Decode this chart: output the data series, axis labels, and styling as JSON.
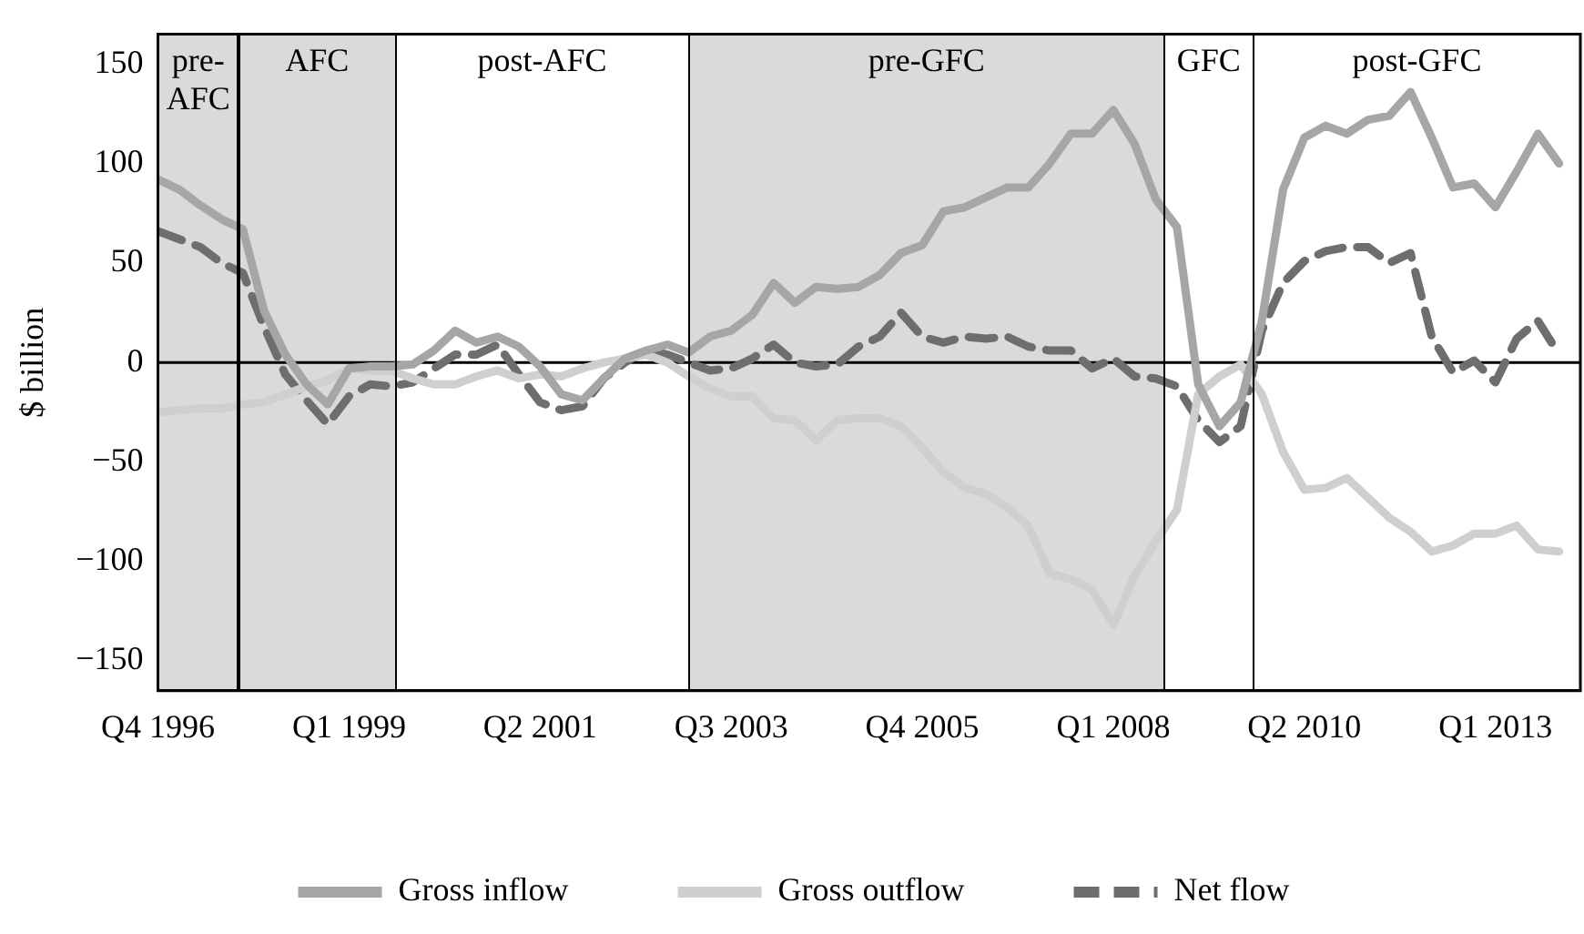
{
  "chart_data": {
    "type": "line",
    "ylabel": "$ billion",
    "categories": [
      "Q4 1996",
      null,
      null,
      null,
      null,
      null,
      null,
      null,
      null,
      "Q1 1999",
      null,
      null,
      null,
      null,
      null,
      null,
      null,
      null,
      "Q2 2001",
      null,
      null,
      null,
      null,
      null,
      null,
      null,
      null,
      "Q3 2003",
      null,
      null,
      null,
      null,
      null,
      null,
      null,
      null,
      "Q4 2005",
      null,
      null,
      null,
      null,
      null,
      null,
      null,
      null,
      "Q1 2008",
      null,
      null,
      null,
      null,
      null,
      null,
      null,
      null,
      "Q2 2010",
      null,
      null,
      null,
      null,
      null,
      null,
      null,
      null,
      "Q1 2013",
      null,
      null,
      null
    ],
    "series": [
      {
        "name": "Gross inflow",
        "color": "#a6a6a6",
        "line_style": "solid",
        "values": [
          92,
          87,
          79,
          72,
          67,
          26,
          4,
          -11,
          -21,
          -3,
          -2,
          -2,
          -1,
          6,
          16,
          10,
          13,
          8,
          -2,
          -16,
          -19,
          -8,
          2,
          6,
          9,
          5,
          13,
          16,
          24,
          40,
          30,
          38,
          37,
          38,
          44,
          55,
          59,
          76,
          78,
          83,
          88,
          88,
          100,
          115,
          115,
          127,
          110,
          82,
          68,
          -11,
          -32,
          -20,
          21,
          87,
          113,
          119,
          115,
          122,
          124,
          136,
          113,
          88,
          90,
          78,
          96,
          115,
          100
        ]
      },
      {
        "name": "Gross outflow",
        "color": "#cfcfcf",
        "line_style": "solid",
        "values": [
          -25,
          -24,
          -23,
          -23,
          -21,
          -20,
          -16,
          -12,
          -9,
          -3,
          -4,
          -4,
          -8,
          -11,
          -11,
          -7,
          -4,
          -8,
          -6,
          -7,
          -3,
          0,
          2,
          4,
          0,
          -7,
          -13,
          -17,
          -17,
          -28,
          -29,
          -39,
          -29,
          -28,
          -28,
          -32,
          -43,
          -55,
          -63,
          -66,
          -73,
          -82,
          -106,
          -109,
          -114,
          -132,
          -107,
          -90,
          -74,
          -16,
          -7,
          -1,
          -16,
          -45,
          -64,
          -63,
          -58,
          -68,
          -78,
          -85,
          -95,
          -92,
          -86,
          -86,
          -82,
          -94,
          -95
        ]
      },
      {
        "name": "Net flow",
        "color": "#6e6e6e",
        "line_style": "dashed",
        "values": [
          66,
          62,
          58,
          50,
          45,
          18,
          -6,
          -19,
          -31,
          -17,
          -11,
          -12,
          -10,
          -3,
          4,
          4,
          9,
          -6,
          -20,
          -24,
          -22,
          -8,
          0,
          6,
          4,
          0,
          -4,
          -3,
          2,
          9,
          0,
          -2,
          -1,
          8,
          13,
          25,
          13,
          10,
          13,
          12,
          13,
          8,
          6,
          6,
          -3,
          2,
          -7,
          -8,
          -12,
          -29,
          -40,
          -32,
          16,
          40,
          51,
          56,
          58,
          58,
          50,
          55,
          13,
          -5,
          1,
          -10,
          12,
          21,
          4
        ]
      }
    ],
    "ylim": [
      -165,
      165
    ],
    "yticks": [
      {
        "value": -150,
        "label": "−150"
      },
      {
        "value": -100,
        "label": "−100"
      },
      {
        "value": -50,
        "label": "−50"
      },
      0,
      50,
      100,
      150
    ],
    "annotations": [
      "pre-AFC",
      "AFC",
      "post-AFC",
      "pre-GFC",
      "GFC",
      "post-GFC"
    ],
    "ref_lines": [
      {
        "axis": "y",
        "value": 0,
        "color": "#000000"
      }
    ],
    "legend": "bottom"
  }
}
